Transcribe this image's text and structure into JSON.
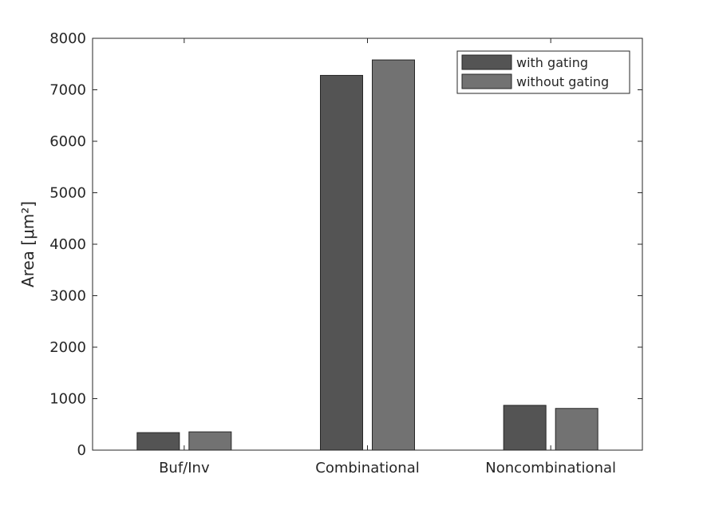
{
  "chart_data": {
    "type": "bar",
    "categories": [
      "Buf/Inv",
      "Combinational",
      "Noncombinational"
    ],
    "series": [
      {
        "name": "with gating",
        "color": "#545454",
        "values": [
          340,
          7280,
          870
        ]
      },
      {
        "name": "without gating",
        "color": "#727272",
        "values": [
          355,
          7580,
          810
        ]
      }
    ],
    "xlabel": "",
    "ylabel": "Area [μm²]",
    "ylim": [
      0,
      8000
    ],
    "yticks": [
      0,
      1000,
      2000,
      3000,
      4000,
      5000,
      6000,
      7000,
      8000
    ],
    "grid": false,
    "legend_position": "top-right"
  }
}
